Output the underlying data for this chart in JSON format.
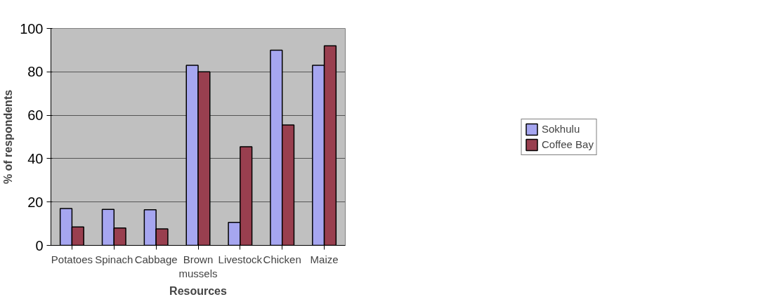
{
  "chart_data": {
    "type": "bar",
    "xlabel": "Resources",
    "ylabel": "% of respondents",
    "categories": [
      "Potatoes",
      "Spinach",
      "Cabbage",
      "Brown\nmussels",
      "Livestock",
      "Chicken",
      "Maize"
    ],
    "series": [
      {
        "name": "Sokhulu",
        "color": "#a6a6f0",
        "values": [
          17,
          16.6,
          16.4,
          83,
          10.6,
          90,
          83
        ]
      },
      {
        "name": "Coffee Bay",
        "color": "#993f4f",
        "values": [
          8.5,
          8,
          7.6,
          80,
          45.5,
          55.5,
          92
        ]
      }
    ],
    "ylim": [
      0,
      100
    ],
    "yticks": [
      0,
      20,
      40,
      60,
      80,
      100
    ],
    "grid": "y",
    "legend": "right"
  }
}
